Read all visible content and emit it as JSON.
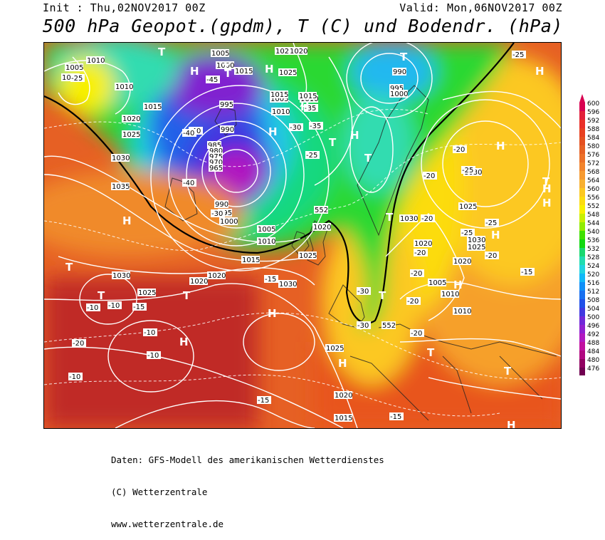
{
  "header": {
    "init": "Init : Thu,02NOV2017 00Z",
    "valid": "Valid: Mon,06NOV2017 00Z",
    "title": "500 hPa Geopot.(gpdm), T (C) und Bodendr. (hPa)"
  },
  "legend": {
    "values": [
      600,
      596,
      592,
      588,
      584,
      580,
      576,
      572,
      568,
      564,
      560,
      556,
      552,
      548,
      544,
      540,
      536,
      532,
      528,
      524,
      520,
      516,
      512,
      508,
      504,
      500,
      496,
      492,
      488,
      484,
      480,
      476
    ],
    "colors": [
      "#d80050",
      "#e2203a",
      "#ea3028",
      "#e84020",
      "#e45020",
      "#e66024",
      "#ec7028",
      "#f2842c",
      "#f69a30",
      "#f8b030",
      "#fcc820",
      "#fcdc10",
      "#f8f000",
      "#c8f000",
      "#90ec00",
      "#40e000",
      "#10d810",
      "#18d870",
      "#20dcb0",
      "#20d4e0",
      "#10b8f8",
      "#1090f8",
      "#1870f0",
      "#2050e8",
      "#4038e0",
      "#7028d8",
      "#9020d0",
      "#b018c0",
      "#c010a0",
      "#b00880",
      "#900060",
      "#700050"
    ]
  },
  "map": {
    "pressure_labels": [
      "1010",
      "1005",
      "1000",
      "1010",
      "1020",
      "1025",
      "1015",
      "1030",
      "1035",
      "1005",
      "1000",
      "1015",
      "995",
      "990",
      "985",
      "980",
      "975",
      "970",
      "965",
      "990",
      "995",
      "1000",
      "1005",
      "1010",
      "1015",
      "1020",
      "1025",
      "1030",
      "1020",
      "1025",
      "1020",
      "1030",
      "1025",
      "1015",
      "1020",
      "1010",
      "1005",
      "1015",
      "1010",
      "995",
      "1000",
      "990",
      "1025",
      "1030",
      "1025",
      "1030",
      "1020",
      "1010",
      "1005",
      "1010",
      "1020",
      "1025",
      "1030",
      "1025",
      "1020",
      "1015",
      "552",
      "552"
    ],
    "temp_labels": [
      "-25",
      "-45",
      "-40",
      "-40",
      "-40",
      "-30",
      "-35",
      "-30",
      "-35",
      "-25",
      "-20",
      "-25",
      "-20",
      "-20",
      "-25",
      "-25",
      "-20",
      "-20",
      "-20",
      "-20",
      "-30",
      "-30",
      "-15",
      "-15",
      "-10",
      "-10",
      "-10",
      "-10",
      "-10",
      "-15",
      "-20",
      "-20",
      "-15",
      "-25",
      "-15"
    ],
    "H_label": "H",
    "T_label": "T"
  },
  "footer": {
    "line1": "Daten: GFS-Modell des amerikanischen Wetterdienstes",
    "line2": "(C) Wetterzentrale",
    "line3": "www.wetterzentrale.de"
  }
}
